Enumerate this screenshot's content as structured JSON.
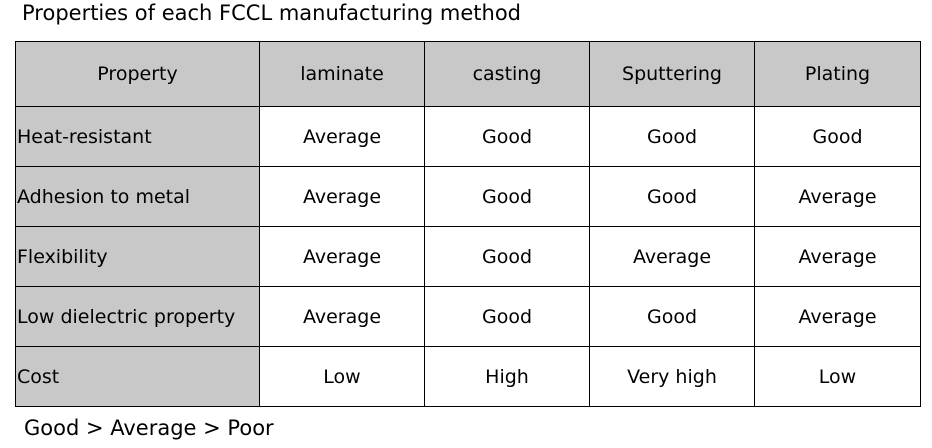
{
  "title": "Properties of each FCCL manufacturing method",
  "table": {
    "headers": [
      "Property",
      "laminate",
      "casting",
      "Sputtering",
      "Plating"
    ],
    "rows": [
      {
        "property": "Heat-resistant",
        "values": [
          "Average",
          "Good",
          "Good",
          "Good"
        ]
      },
      {
        "property": "Adhesion to metal",
        "values": [
          "Average",
          "Good",
          "Good",
          "Average"
        ]
      },
      {
        "property": "Flexibility",
        "values": [
          "Average",
          "Good",
          "Average",
          "Average"
        ]
      },
      {
        "property": "Low dielectric property",
        "values": [
          "Average",
          "Good",
          "Good",
          "Average"
        ]
      },
      {
        "property": "Cost",
        "values": [
          "Low",
          "High",
          "Very high",
          "Low"
        ]
      }
    ]
  },
  "legend": "Good > Average > Poor",
  "colors": {
    "header_fill": "#c8c8c8",
    "cell_fill": "#ffffff",
    "border": "#000000"
  }
}
